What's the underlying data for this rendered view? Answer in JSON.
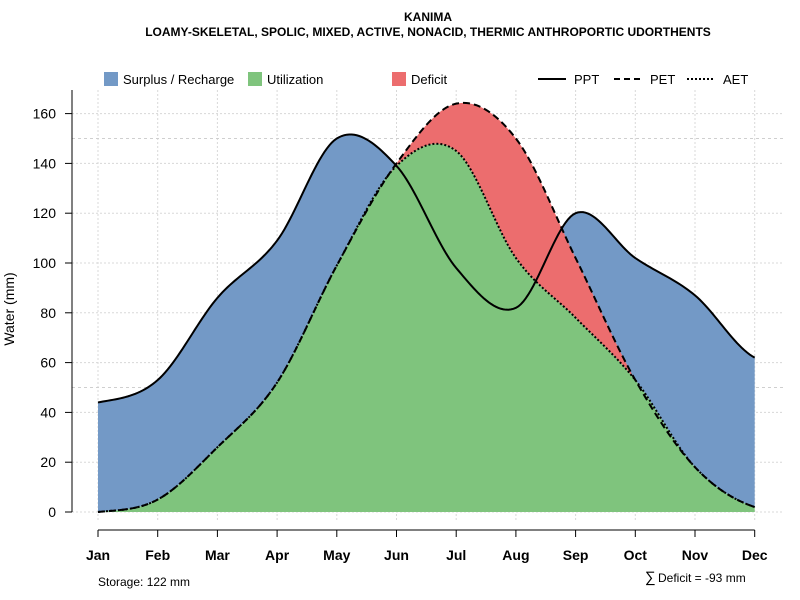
{
  "chart_data": {
    "type": "area",
    "title": "KANIMA",
    "subtitle": "LOAMY-SKELETAL, SPOLIC, MIXED, ACTIVE, NONACID, THERMIC ANTHROPORTIC UDORTHENTS",
    "ylabel": "Water (mm)",
    "xlabel": "",
    "ylim": [
      0,
      170
    ],
    "yticks": [
      0,
      20,
      40,
      60,
      80,
      100,
      120,
      140,
      160
    ],
    "categories": [
      "Jan",
      "Feb",
      "Mar",
      "Apr",
      "May",
      "Jun",
      "Jul",
      "Aug",
      "Sep",
      "Oct",
      "Nov",
      "Dec"
    ],
    "series": [
      {
        "name": "PPT",
        "style": "solid",
        "values": [
          44,
          53,
          86,
          109,
          150,
          139,
          98,
          82,
          120,
          102,
          87,
          62
        ]
      },
      {
        "name": "PET",
        "style": "dashed",
        "values": [
          0,
          5,
          26,
          52,
          99,
          140,
          164,
          150,
          102,
          53,
          18,
          2
        ]
      },
      {
        "name": "AET",
        "style": "dotted",
        "values": [
          0,
          5,
          26,
          52,
          99,
          139,
          145,
          102,
          78,
          53,
          18,
          2
        ]
      }
    ],
    "areas": [
      {
        "name": "Surplus / Recharge",
        "color": "#7399c6"
      },
      {
        "name": "Utilization",
        "color": "#7fc47d"
      },
      {
        "name": "Deficit",
        "color": "#ec6d6e"
      }
    ],
    "reference_lines": [
      50,
      150
    ],
    "grid": true,
    "legend_position": "top",
    "annotations": {
      "storage": "Storage: 122 mm",
      "deficit_symbol": "∑",
      "deficit": "Deficit = -93 mm"
    }
  }
}
